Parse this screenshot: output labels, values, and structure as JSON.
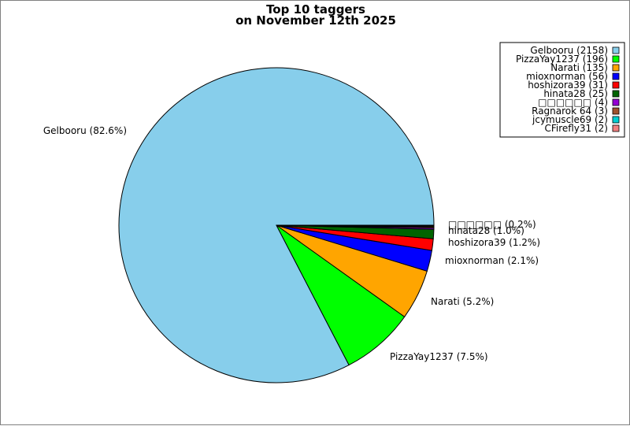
{
  "chart_data": {
    "type": "pie",
    "title": [
      "Top 10 taggers",
      "on November 12th 2025"
    ],
    "legend_position": "top-right",
    "slices": [
      {
        "name": "Gelbooru",
        "value": 2158,
        "percent_label": "82.6%",
        "legend_label": "Gelbooru (2158)",
        "slice_label": "Gelbooru (82.6%)",
        "color": "#87ceeb"
      },
      {
        "name": "PizzaYay1237",
        "value": 196,
        "percent_label": "7.5%",
        "legend_label": "PizzaYay1237 (196)",
        "slice_label": "PizzaYay1237 (7.5%)",
        "color": "#00ff00"
      },
      {
        "name": "Narati",
        "value": 135,
        "percent_label": "5.2%",
        "legend_label": "Narati (135)",
        "slice_label": "Narati (5.2%)",
        "color": "#ffa500"
      },
      {
        "name": "mioxnorman",
        "value": 56,
        "percent_label": "2.1%",
        "legend_label": "mioxnorman (56)",
        "slice_label": "mioxnorman (2.1%)",
        "color": "#0000ff"
      },
      {
        "name": "hoshizora39",
        "value": 31,
        "percent_label": "1.2%",
        "legend_label": "hoshizora39 (31)",
        "slice_label": "hoshizora39 (1.2%)",
        "color": "#ff0000"
      },
      {
        "name": "hinata28",
        "value": 25,
        "percent_label": "1.0%",
        "legend_label": "hinata28 (25)",
        "slice_label": "hinata28 (1.0%)",
        "color": "#006400"
      },
      {
        "name": "□□□□□□",
        "value": 4,
        "percent_label": "0.2%",
        "legend_label": "□□□□□□ (4)",
        "slice_label": "□□□□□□ (0.2%)",
        "color": "#9400d3"
      },
      {
        "name": "Ragnarok 64",
        "value": 3,
        "percent_label": "",
        "legend_label": "Ragnarok 64 (3)",
        "slice_label": "",
        "color": "#a0522d"
      },
      {
        "name": "jcymuscle69",
        "value": 2,
        "percent_label": "",
        "legend_label": "jcymuscle69 (2)",
        "slice_label": "",
        "color": "#00ced1"
      },
      {
        "name": "CFirefly31",
        "value": 2,
        "percent_label": "",
        "legend_label": "CFirefly31 (2)",
        "slice_label": "",
        "color": "#f08080"
      }
    ]
  }
}
